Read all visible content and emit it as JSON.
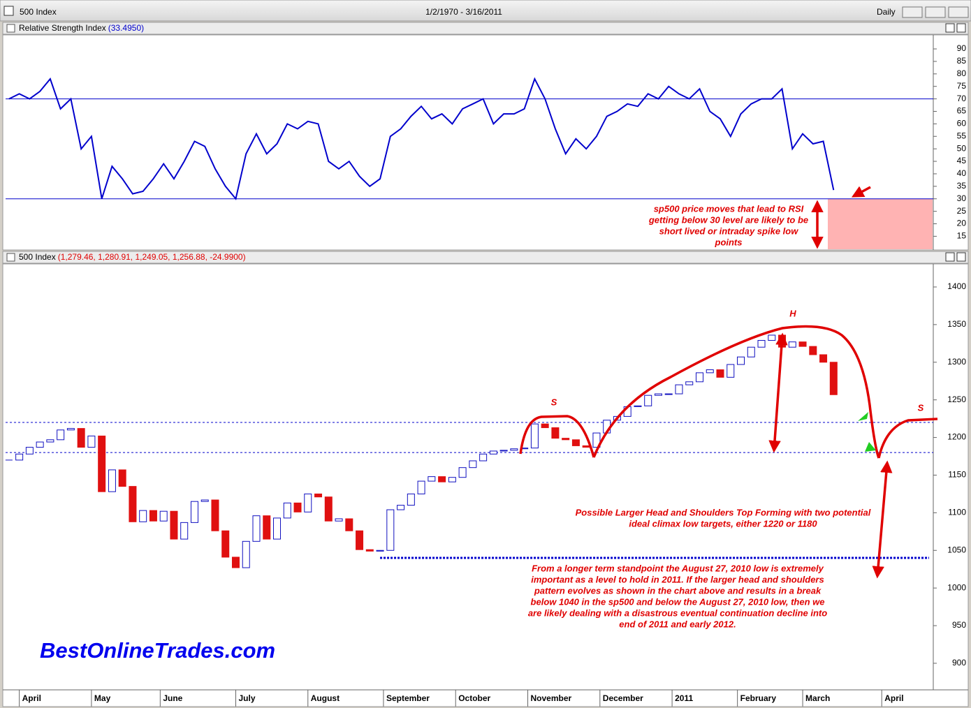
{
  "window": {
    "title": "500 Index",
    "range": "1/2/1970 - 3/16/2011",
    "interval": "Daily"
  },
  "chart_data": [
    {
      "type": "line",
      "title": "Relative Strength Index",
      "subtitle": "(33.4950)",
      "xlim": [
        -0.33,
        89.67
      ],
      "ylim": [
        9.8,
        95.6
      ],
      "yticks": [
        15,
        20,
        25,
        30,
        35,
        40,
        45,
        50,
        55,
        60,
        65,
        70,
        75,
        80,
        85,
        90
      ],
      "hlines": [
        {
          "value": 70,
          "style": "solid"
        },
        {
          "value": 30,
          "style": "solid"
        }
      ],
      "x": [
        0,
        1,
        2,
        3,
        4,
        5,
        6,
        7,
        8,
        9,
        10,
        11,
        12,
        13,
        14,
        15,
        16,
        17,
        18,
        19,
        20,
        21,
        22,
        23,
        24,
        25,
        26,
        27,
        28,
        29,
        30,
        31,
        32,
        33,
        34,
        35,
        36,
        37,
        38,
        39,
        40,
        41,
        42,
        43,
        44,
        45,
        46,
        47,
        48,
        49,
        50,
        51,
        52,
        53,
        54,
        55,
        56,
        57,
        58,
        59,
        60,
        61,
        62,
        63,
        64,
        65,
        66,
        67,
        68,
        69,
        70,
        71,
        72,
        73,
        74,
        75,
        76,
        77,
        78,
        79,
        80
      ],
      "series": [
        {
          "name": "Relative Strength Index",
          "color": "#0000cc",
          "values": [
            70,
            72,
            70,
            73,
            78,
            66,
            70,
            50,
            55,
            30,
            43,
            38,
            32,
            33,
            38,
            44,
            38,
            45,
            53,
            51,
            42,
            35,
            30,
            48,
            56,
            48,
            52,
            60,
            58,
            61,
            60,
            45,
            42,
            45,
            39,
            35,
            38,
            55,
            58,
            63,
            67,
            62,
            64,
            60,
            66,
            68,
            70,
            60,
            64,
            64,
            66,
            78,
            70,
            58,
            48,
            54,
            50,
            55,
            63,
            65,
            68,
            67,
            72,
            70,
            75,
            72,
            70,
            74,
            65,
            62,
            55,
            64,
            68,
            70,
            70,
            74,
            50,
            56,
            52,
            53,
            33.495
          ]
        }
      ],
      "annotations": [
        [
          "sp500 price moves that lead to RSI",
          "getting below 30 level are likely to be",
          "short lived or intraday spike low",
          "points"
        ]
      ]
    },
    {
      "type": "candlestick",
      "title": "500 Index",
      "subtitle": "(1,279.46, 1,280.91, 1,249.05, 1,256.88, -24.9900)",
      "xlim": [
        -0.33,
        89.67
      ],
      "ylim": [
        864.7,
        1430.6
      ],
      "yticks": [
        900,
        950,
        1000,
        1050,
        1100,
        1150,
        1200,
        1250,
        1300,
        1350,
        1400
      ],
      "xticks": [
        {
          "value": 1,
          "label": "April"
        },
        {
          "value": 8,
          "label": "May"
        },
        {
          "value": 14.67,
          "label": "June"
        },
        {
          "value": 22,
          "label": "July"
        },
        {
          "value": 29,
          "label": "August"
        },
        {
          "value": 36.33,
          "label": "September"
        },
        {
          "value": 43.33,
          "label": "October"
        },
        {
          "value": 50.33,
          "label": "November"
        },
        {
          "value": 57.33,
          "label": "December"
        },
        {
          "value": 64.33,
          "label": "2011"
        },
        {
          "value": 70.67,
          "label": "February"
        },
        {
          "value": 77,
          "label": "March"
        },
        {
          "value": 84.67,
          "label": "April"
        }
      ],
      "hlines": [
        {
          "value": 1220,
          "style": "dashed"
        },
        {
          "value": 1180,
          "style": "dashed"
        },
        {
          "value": 1040,
          "style": "heavy",
          "from": 36
        }
      ],
      "x": [
        0,
        1,
        2,
        3,
        4,
        5,
        6,
        7,
        8,
        9,
        10,
        11,
        12,
        13,
        14,
        15,
        16,
        17,
        18,
        19,
        20,
        21,
        22,
        23,
        24,
        25,
        26,
        27,
        28,
        29,
        30,
        31,
        32,
        33,
        34,
        35,
        36,
        37,
        38,
        39,
        40,
        41,
        42,
        43,
        44,
        45,
        46,
        47,
        48,
        49,
        50,
        51,
        52,
        53,
        54,
        55,
        56,
        57,
        58,
        59,
        60,
        61,
        62,
        63,
        64,
        65,
        66,
        67,
        68,
        69,
        70,
        71,
        72,
        73,
        74,
        75,
        76,
        77,
        78,
        79,
        80
      ],
      "series": [
        {
          "name": "500 Index",
          "color": "#e01010",
          "up_color": "#1010c0",
          "values": [
            1170,
            1178,
            1187,
            1194,
            1197,
            1210,
            1212,
            1187,
            1202,
            1128,
            1157,
            1135,
            1088,
            1103,
            1089,
            1102,
            1065,
            1087,
            1115,
            1117,
            1076,
            1041,
            1027,
            1062,
            1096,
            1065,
            1093,
            1113,
            1101,
            1125,
            1121,
            1089,
            1092,
            1076,
            1051,
            1049,
            1050,
            1104,
            1110,
            1125,
            1142,
            1148,
            1141,
            1147,
            1160,
            1169,
            1178,
            1182,
            1183,
            1185,
            1186,
            1218,
            1213,
            1199,
            1197,
            1189,
            1187,
            1206,
            1223,
            1228,
            1241,
            1242,
            1256,
            1258,
            1258,
            1270,
            1274,
            1286,
            1290,
            1280,
            1297,
            1307,
            1320,
            1329,
            1336,
            1320,
            1327,
            1321,
            1310,
            1300,
            1256.88
          ]
        }
      ],
      "labels": [
        "S",
        "H",
        "S"
      ],
      "annotations": [
        [
          "Possible Larger Head and Shoulders Top Forming with two potential",
          "ideal climax low targets, either 1220 or 1180"
        ],
        [
          "From a longer term standpoint the August 27, 2010 low is extremely",
          "important as a level to hold in 2011.  If the larger head and shoulders",
          "pattern evolves as shown in the chart above and results in a break",
          "below 1040 in the sp500 and below the August 27, 2010 low, then we",
          "are likely dealing with a disastrous eventual continuation decline into",
          "end of 2011 and early 2012."
        ]
      ],
      "watermark": "BestOnlineTrades.com"
    }
  ]
}
